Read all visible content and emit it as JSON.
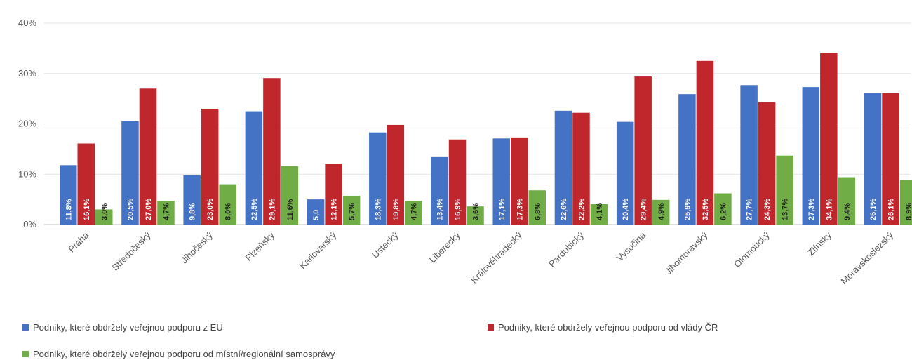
{
  "chart_data": {
    "type": "bar",
    "title": "",
    "xlabel": "",
    "ylabel": "",
    "ylim": [
      0,
      40
    ],
    "y_ticks": [
      "0%",
      "10%",
      "20%",
      "30%",
      "40%"
    ],
    "grid": true,
    "legend_position": "bottom",
    "categories": [
      "Praha",
      "Středočeský",
      "Jihočeský",
      "Plzeňský",
      "Karlovarský",
      "Ústecký",
      "Liberecký",
      "Královéhradecký",
      "Pardubický",
      "Vysočina",
      "Jihomoravský",
      "Olomoucký",
      "Zlínský",
      "Moravskoslezský"
    ],
    "series": [
      {
        "name": "Podniky, které obdržely veřejnou podporu z EU",
        "color": "#4472c4",
        "values": [
          11.8,
          20.5,
          9.8,
          22.5,
          5.0,
          18.3,
          13.4,
          17.1,
          22.6,
          20.4,
          25.9,
          27.7,
          27.3,
          26.1
        ],
        "labels": [
          "11,8%",
          "20,5%",
          "9,8%",
          "22,5%",
          "5,0",
          "18,3%",
          "13,4%",
          "17,1%",
          "22,6%",
          "20,4%",
          "25,9%",
          "27,7%",
          "27,3%",
          "26,1%"
        ]
      },
      {
        "name": "Podniky, které obdržely veřejnou podporu od vlády ČR",
        "color": "#c0272d",
        "values": [
          16.1,
          27.0,
          23.0,
          29.1,
          12.1,
          19.8,
          16.9,
          17.3,
          22.2,
          29.4,
          32.5,
          24.3,
          34.1,
          26.1
        ],
        "labels": [
          "16,1%",
          "27,0%",
          "23,0%",
          "29,1%",
          "12,1%",
          "19,8%",
          "16,9%",
          "17,3%",
          "22,2%",
          "29,4%",
          "32,5%",
          "24,3%",
          "34,1%",
          "26,1%"
        ]
      },
      {
        "name": "Podniky, které obdržely veřejnou podporu od místní/regionální samosprávy",
        "color": "#70ad47",
        "values": [
          3.0,
          4.7,
          8.0,
          11.6,
          5.7,
          4.7,
          3.6,
          6.8,
          4.1,
          4.9,
          6.2,
          13.7,
          9.4,
          8.9
        ],
        "labels": [
          "3,0%",
          "4,7%",
          "8,0%",
          "11,6%",
          "5,7%",
          "4,7%",
          "3,6%",
          "6,8%",
          "4,1%",
          "4,9%",
          "6,2%",
          "13,7%",
          "9,4%",
          "8,9%"
        ]
      }
    ]
  }
}
